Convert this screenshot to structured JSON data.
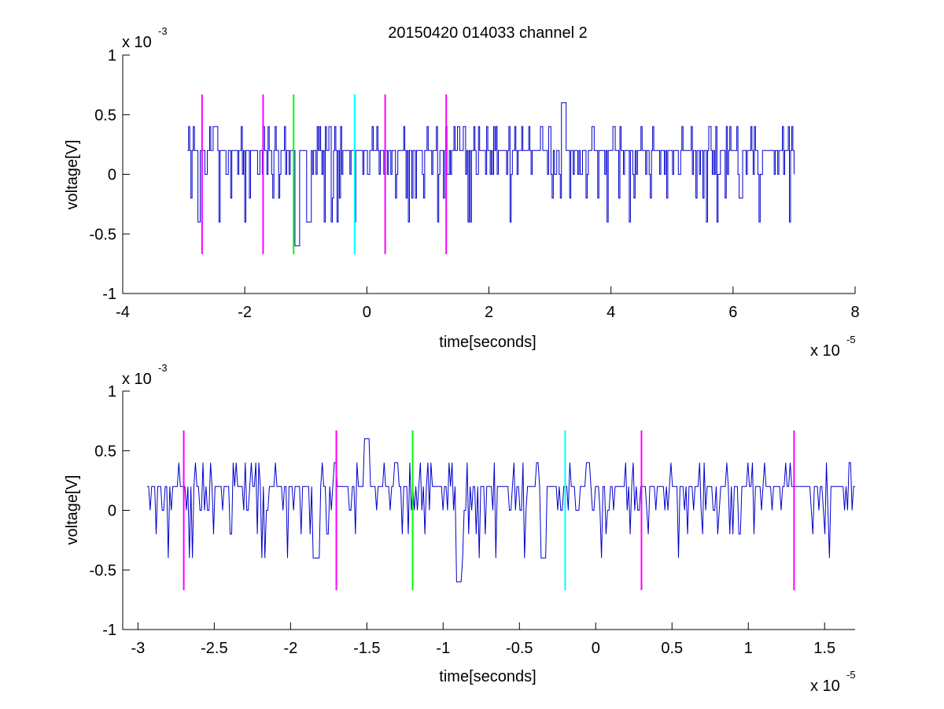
{
  "title": "20150420 014033 channel 2",
  "chart_data": [
    {
      "type": "line",
      "title": "20150420 014033 channel 2",
      "xlabel": "time[seconds]",
      "ylabel": "voltage[V]",
      "x_exponent_label": "x 10",
      "x_exponent": "-5",
      "y_exponent_label": "x 10",
      "y_exponent": "-3",
      "xlim": [
        -4e-05,
        8e-05
      ],
      "ylim": [
        -0.001,
        0.001
      ],
      "xticks": [
        -4e-05,
        -2e-05,
        0,
        2e-05,
        4e-05,
        6e-05,
        8e-05
      ],
      "xtick_labels": [
        "-4",
        "-2",
        "0",
        "2",
        "4",
        "6",
        "8"
      ],
      "yticks": [
        -0.001,
        -0.0005,
        0,
        0.0005,
        0.001
      ],
      "ytick_labels": [
        "-1",
        "-0.5",
        "0",
        "0.5",
        "1"
      ],
      "grid": false,
      "series": [
        {
          "color": "#0000cc",
          "x_range": [
            -2.94e-05,
            7e-05
          ],
          "y_levels": [
            -0.0006,
            -0.0004,
            -0.0002,
            0,
            0.0002,
            0.0004,
            0.0006
          ],
          "typical_level": 0.0002
        }
      ],
      "markers": [
        {
          "x": -2.7e-05,
          "color": "#ff00ff",
          "ymin": -0.00067,
          "ymax": 0.00067
        },
        {
          "x": -1.7e-05,
          "color": "#ff00ff",
          "ymin": -0.00067,
          "ymax": 0.00067
        },
        {
          "x": -1.2e-05,
          "color": "#00ff00",
          "ymin": -0.00067,
          "ymax": 0.00067
        },
        {
          "x": -2e-06,
          "color": "#00ffff",
          "ymin": -0.00067,
          "ymax": 0.00067
        },
        {
          "x": 3e-06,
          "color": "#ff00ff",
          "ymin": -0.00067,
          "ymax": 0.00067
        },
        {
          "x": 1.3e-05,
          "color": "#ff00ff",
          "ymin": -0.00067,
          "ymax": 0.00067
        }
      ]
    },
    {
      "type": "line",
      "title": "",
      "xlabel": "time[seconds]",
      "ylabel": "voltage[V]",
      "x_exponent_label": "x 10",
      "x_exponent": "-5",
      "y_exponent_label": "x 10",
      "y_exponent": "-3",
      "xlim": [
        -3.1e-05,
        1.7e-05
      ],
      "ylim": [
        -0.001,
        0.001
      ],
      "xticks": [
        -3e-05,
        -2.5e-05,
        -2e-05,
        -1.5e-05,
        -1e-05,
        -5e-06,
        0,
        5e-06,
        1e-05,
        1.5e-05
      ],
      "xtick_labels": [
        "-3",
        "-2.5",
        "-2",
        "-1.5",
        "-1",
        "-0.5",
        "0",
        "0.5",
        "1",
        "1.5"
      ],
      "yticks": [
        -0.001,
        -0.0005,
        0,
        0.0005,
        0.001
      ],
      "ytick_labels": [
        "-1",
        "-0.5",
        "0",
        "0.5",
        "1"
      ],
      "grid": false,
      "series": [
        {
          "color": "#0000cc",
          "x_range": [
            -2.94e-05,
            1.7e-05
          ],
          "y_levels": [
            -0.0006,
            -0.0004,
            -0.0002,
            0,
            0.0002,
            0.0004,
            0.0006
          ],
          "typical_level": 0.0002
        }
      ],
      "markers": [
        {
          "x": -2.7e-05,
          "color": "#ff00ff",
          "ymin": -0.00067,
          "ymax": 0.00067
        },
        {
          "x": -1.7e-05,
          "color": "#ff00ff",
          "ymin": -0.00067,
          "ymax": 0.00067
        },
        {
          "x": -1.2e-05,
          "color": "#00ff00",
          "ymin": -0.00067,
          "ymax": 0.00067
        },
        {
          "x": -2e-06,
          "color": "#00ffff",
          "ymin": -0.00067,
          "ymax": 0.00067
        },
        {
          "x": 3e-06,
          "color": "#ff00ff",
          "ymin": -0.00067,
          "ymax": 0.00067
        },
        {
          "x": 1.3e-05,
          "color": "#ff00ff",
          "ymin": -0.00067,
          "ymax": 0.00067
        }
      ]
    }
  ]
}
